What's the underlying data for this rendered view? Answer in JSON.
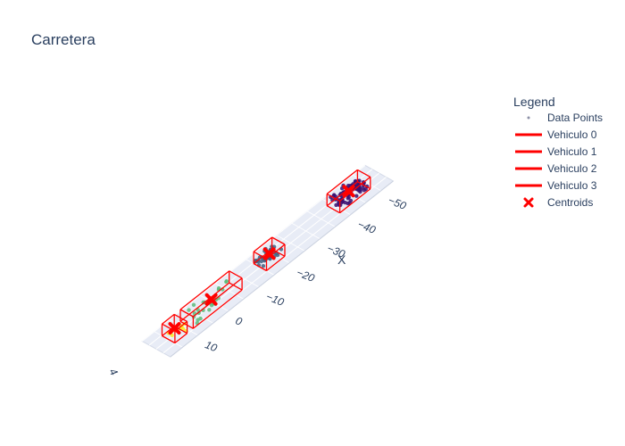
{
  "chart_data": {
    "type": "scatter",
    "title": "Carretera",
    "axis_titles": {
      "x": "X"
    },
    "x_ticks": [
      "−50",
      "−40",
      "−30",
      "−20",
      "−10",
      "0",
      "10"
    ],
    "x_tick_values": [
      -50,
      -40,
      -30,
      -20,
      -10,
      0,
      10
    ],
    "partial_tick": "4",
    "legend": {
      "title": "Legend",
      "position": "right",
      "entries": [
        "Data Points",
        "Vehiculo 0",
        "Vehiculo 1",
        "Vehiculo 2",
        "Vehiculo 3",
        "Centroids"
      ]
    },
    "colors": {
      "boxes": "#ff0000",
      "centroids": "#ff0000",
      "points_scale": [
        "#440154",
        "#31688e",
        "#35b779",
        "#fde725"
      ]
    },
    "series": [
      {
        "name": "Data Points",
        "clusters": [
          {
            "x_center": -44,
            "x_halfwidth": 4.5,
            "count": 80,
            "color": "#3b0f70"
          },
          {
            "x_center": -18,
            "x_halfwidth": 3,
            "count": 35,
            "color": "#3f5f80"
          },
          {
            "x_center": 1,
            "x_halfwidth": 7,
            "count": 25,
            "color": "#5dbb7a"
          },
          {
            "x_center": 13,
            "x_halfwidth": 2,
            "count": 10,
            "color": "#fde725"
          }
        ]
      },
      {
        "name": "Vehiculo 0",
        "x_range": [
          -49,
          -39
        ]
      },
      {
        "name": "Vehiculo 1",
        "x_range": [
          -21,
          -15
        ]
      },
      {
        "name": "Vehiculo 2",
        "x_range": [
          -7,
          9
        ]
      },
      {
        "name": "Vehiculo 3",
        "x_range": [
          11,
          15
        ]
      },
      {
        "name": "Centroids",
        "x": [
          -44,
          -18,
          1,
          13
        ]
      }
    ]
  }
}
